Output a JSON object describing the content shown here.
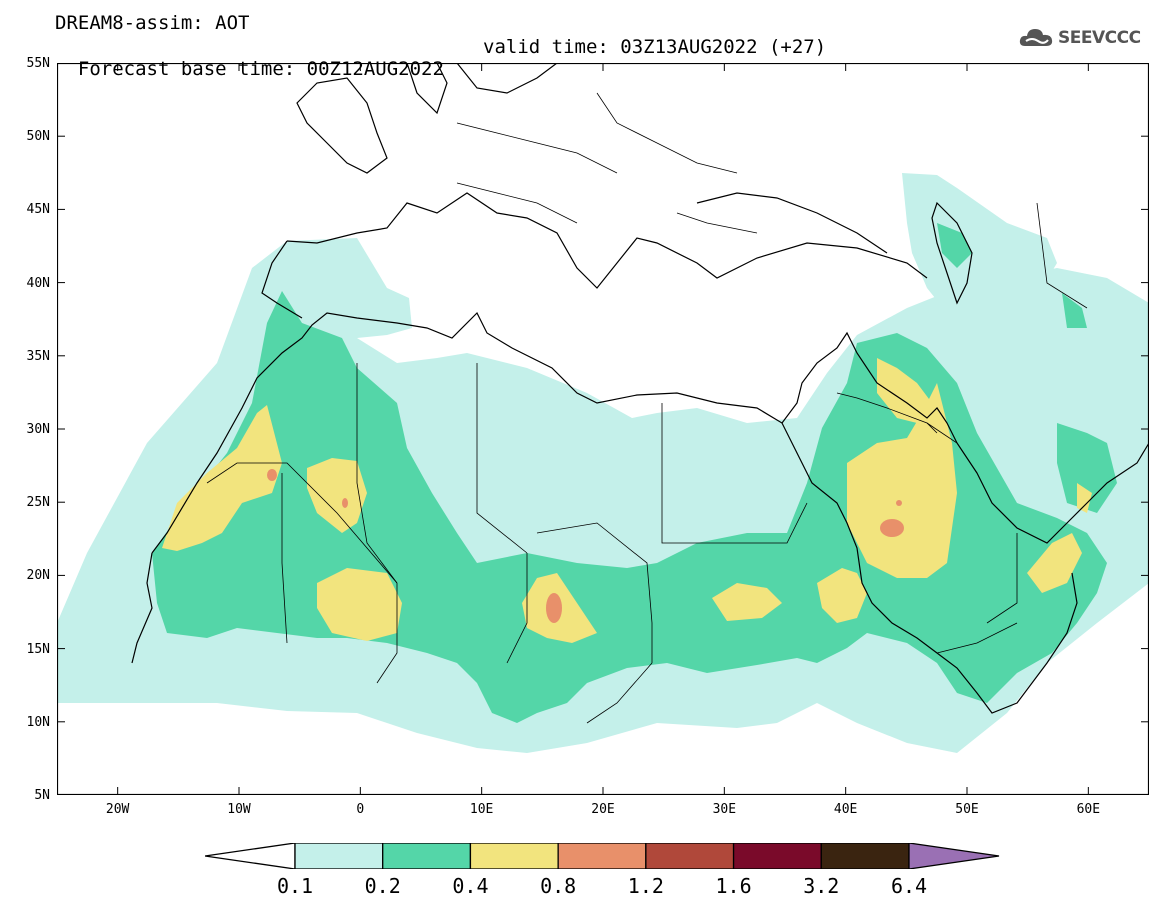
{
  "header": {
    "title_line1": "DREAM8-assim: AOT",
    "base_time": "Forecast base time: 00Z12AUG2022",
    "valid_time": "valid time: 03Z13AUG2022 (+27)"
  },
  "logo": {
    "text": "SEEVCCC",
    "icon": "cloud-icon"
  },
  "map": {
    "lat_labels": [
      "55N",
      "50N",
      "45N",
      "40N",
      "35N",
      "30N",
      "25N",
      "20N",
      "15N",
      "10N",
      "5N"
    ],
    "lon_labels": [
      "20W",
      "10W",
      "0",
      "10E",
      "20E",
      "30E",
      "40E",
      "50E",
      "60E"
    ],
    "colors": {
      "ocean": "#ffffff",
      "border": "#000000",
      "level_0_1": "#c4f0ea",
      "level_0_2": "#54d6a8",
      "level_0_4": "#f2e47e",
      "level_0_8": "#e8906a"
    }
  },
  "colorbar": {
    "labels": [
      "0.1",
      "0.2",
      "0.4",
      "0.8",
      "1.2",
      "1.6",
      "3.2",
      "6.4"
    ],
    "colors": [
      "#ffffff",
      "#c4f0ea",
      "#54d6a8",
      "#f2e47e",
      "#e8906a",
      "#b0483a",
      "#7a0a2a",
      "#3a2410",
      "#9a70b4"
    ]
  }
}
